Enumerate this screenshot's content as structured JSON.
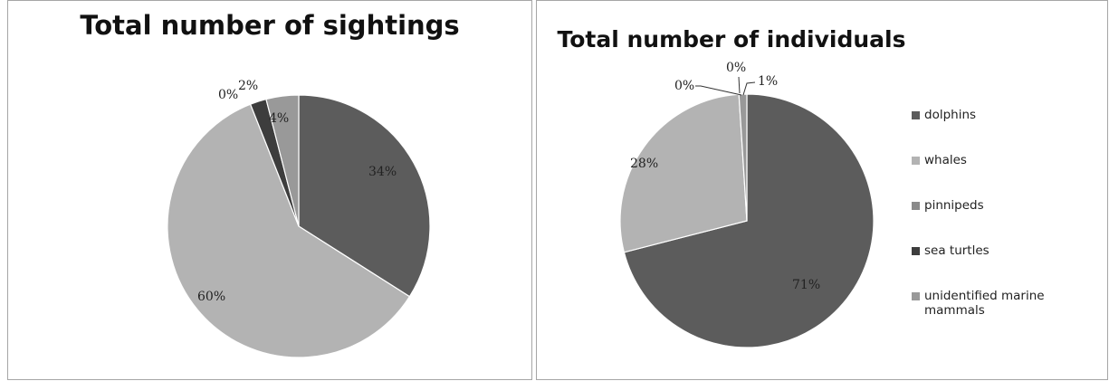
{
  "chart_data": [
    {
      "type": "pie",
      "title": "Total number of sightings",
      "categories": [
        "dolphins",
        "whales",
        "pinnipeds",
        "sea turtles",
        "unidentified marine mammals"
      ],
      "values": [
        34,
        60,
        0,
        2,
        4
      ],
      "labels": [
        "34%",
        "60%",
        "0%",
        "2%",
        "4%"
      ],
      "colors": [
        "#5c5c5c",
        "#b3b3b3",
        "#8a8a8a",
        "#3d3d3d",
        "#999999"
      ],
      "legend": "none"
    },
    {
      "type": "pie",
      "title": "Total number of individuals",
      "categories": [
        "dolphins",
        "whales",
        "pinnipeds",
        "sea turtles",
        "unidentified marine mammals"
      ],
      "values": [
        71,
        28,
        0,
        0,
        1
      ],
      "labels": [
        "71%",
        "28%",
        "0%",
        "0%",
        "1%"
      ],
      "colors": [
        "#5c5c5c",
        "#b3b3b3",
        "#8a8a8a",
        "#3d3d3d",
        "#999999"
      ],
      "legend": "right"
    }
  ],
  "legend_items": [
    {
      "label": "dolphins",
      "color": "#5c5c5c"
    },
    {
      "label": "whales",
      "color": "#b3b3b3"
    },
    {
      "label": "pinnipeds",
      "color": "#8a8a8a"
    },
    {
      "label": "sea turtles",
      "color": "#3d3d3d"
    },
    {
      "label": "unidentified marine mammals",
      "color": "#999999"
    }
  ]
}
